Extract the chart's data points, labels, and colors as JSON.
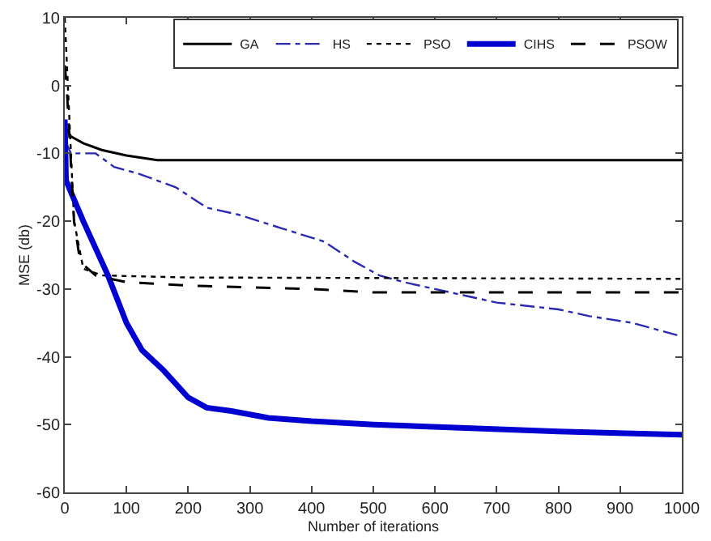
{
  "chart_data": {
    "type": "line",
    "xlabel": "Number of iterations",
    "ylabel": "MSE (db)",
    "xlim": [
      0,
      1000
    ],
    "ylim": [
      -60,
      10
    ],
    "xticks": [
      0,
      100,
      200,
      300,
      400,
      500,
      600,
      700,
      800,
      900,
      1000
    ],
    "yticks": [
      -60,
      -50,
      -40,
      -30,
      -20,
      -10,
      0,
      10
    ],
    "grid": false,
    "legend": "top right",
    "marker": "none",
    "series": [
      {
        "name": "GA",
        "color": "#000000",
        "line_style": "solid",
        "x": [
          0,
          10,
          30,
          60,
          100,
          150,
          300,
          1000
        ],
        "values": [
          -6,
          -7.5,
          -8.5,
          -9.5,
          -10.3,
          -11,
          -11,
          -11
        ]
      },
      {
        "name": "HS",
        "color": "#2a2ab0",
        "line_style": "dashdot",
        "x": [
          0,
          10,
          50,
          80,
          120,
          180,
          230,
          280,
          350,
          420,
          470,
          510,
          550,
          600,
          650,
          700,
          800,
          850,
          920,
          960,
          1000
        ],
        "values": [
          -8,
          -10,
          -10,
          -12,
          -13,
          -15,
          -18,
          -19,
          -21,
          -23,
          -26,
          -28,
          -29,
          -30,
          -31,
          -32,
          -33,
          -34,
          -35,
          -36,
          -37
        ]
      },
      {
        "name": "PSO",
        "color": "#000000",
        "line_style": "dotted",
        "x": [
          0,
          5,
          15,
          30,
          60,
          200,
          1000
        ],
        "values": [
          10,
          0,
          -20,
          -27,
          -28,
          -28.3,
          -28.5
        ]
      },
      {
        "name": "CIHS",
        "color": "#0000d0",
        "line_style": "solid",
        "x": [
          0,
          2,
          30,
          70,
          100,
          125,
          160,
          200,
          230,
          270,
          330,
          400,
          500,
          650,
          800,
          1000
        ],
        "values": [
          -5,
          -14,
          -20,
          -28,
          -35,
          -39,
          -42,
          -46,
          -47.5,
          -48,
          -49,
          -49.5,
          -50,
          -50.5,
          -51,
          -51.5
        ]
      },
      {
        "name": "PSOW",
        "color": "#000000",
        "line_style": "dashed",
        "x": [
          0,
          3,
          15,
          25,
          50,
          100,
          200,
          400,
          500,
          1000
        ],
        "values": [
          3,
          0,
          -20,
          -26,
          -28,
          -29,
          -29.5,
          -30,
          -30.5,
          -30.5
        ]
      }
    ]
  }
}
